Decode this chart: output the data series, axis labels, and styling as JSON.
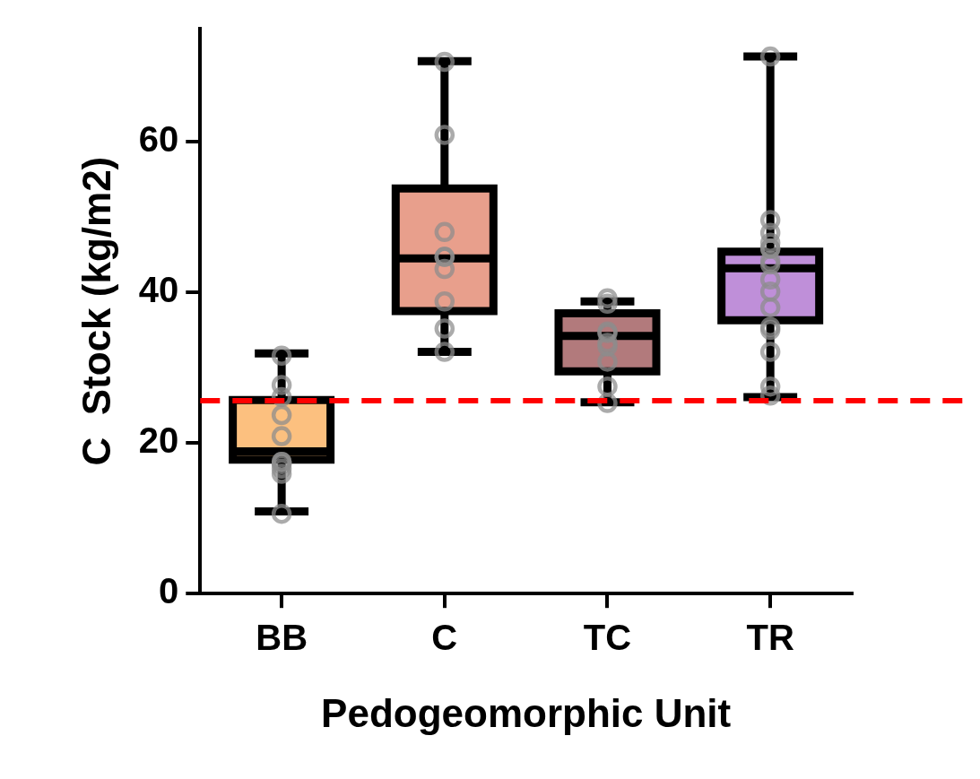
{
  "chart_data": {
    "type": "box",
    "xlabel": "Pedogeomorphic Unit",
    "ylabel": "C  Stock (kg/m2)",
    "categories": [
      "BB",
      "C",
      "TC",
      "TR"
    ],
    "ylim": [
      0,
      75
    ],
    "yticks": [
      0,
      20,
      40,
      60
    ],
    "grid": false,
    "legend": false,
    "marker": "circle",
    "series": [
      {
        "type": "box",
        "colors": [
          "#fcc07f",
          "#e89f8c",
          "#b27a7c",
          "#bf8fd9"
        ],
        "boxes": [
          {
            "low": 10.9,
            "q1": 17.8,
            "median": 18.9,
            "q3": 25.7,
            "high": 31.9
          },
          {
            "low": 32.1,
            "q1": 37.5,
            "median": 44.5,
            "q3": 53.8,
            "high": 70.7
          },
          {
            "low": 25.4,
            "q1": 29.5,
            "median": 34.2,
            "q3": 37.2,
            "high": 38.8
          },
          {
            "low": 26.1,
            "q1": 36.3,
            "median": 43.2,
            "q3": 45.4,
            "high": 71.3
          }
        ]
      },
      {
        "type": "scatter",
        "color": "#8c8c8c",
        "x": [
          "BB",
          "BB",
          "BB",
          "BB",
          "BB",
          "BB",
          "BB",
          "BB",
          "BB",
          "BB",
          "BB",
          "C",
          "C",
          "C",
          "C",
          "C",
          "C",
          "C",
          "C",
          "C",
          "TC",
          "TC",
          "TC",
          "TC",
          "TC",
          "TC",
          "TC",
          "TC",
          "TC",
          "TC",
          "TR",
          "TR",
          "TR",
          "TR",
          "TR",
          "TR",
          "TR",
          "TR",
          "TR",
          "TR",
          "TR",
          "TR",
          "TR",
          "TR",
          "TR",
          "TR"
        ],
        "values": [
          31.6,
          27.7,
          26.1,
          23.7,
          20.9,
          17.5,
          17.5,
          17.2,
          16.6,
          15.9,
          10.6,
          70.6,
          60.9,
          48.0,
          44.7,
          44.7,
          43.1,
          38.8,
          35.2,
          32.1,
          38.5,
          39.2,
          34.6,
          34.8,
          33.3,
          30.8,
          32.8,
          27.5,
          25.3,
          null,
          71.3,
          49.6,
          47.9,
          46.6,
          45.8,
          45.8,
          44.2,
          43.7,
          41.7,
          40.1,
          38.0,
          35.4,
          35.0,
          32.1,
          27.5,
          26.3
        ]
      }
    ],
    "ref_lines": [
      {
        "axis": "y",
        "value": 25.6,
        "color": "#ff0000",
        "line_style": "dashed"
      }
    ]
  }
}
